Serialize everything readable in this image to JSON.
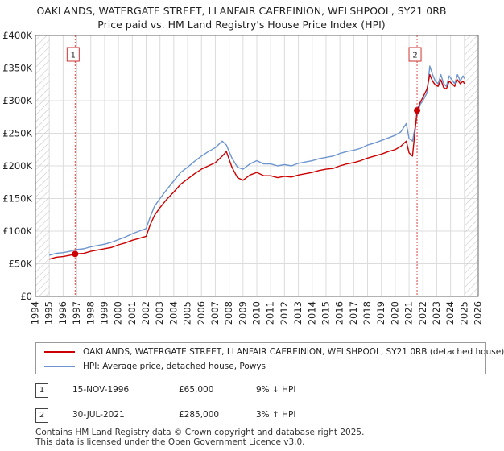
{
  "title_line1": "OAKLANDS, WATERGATE STREET, LLANFAIR CAEREINION, WELSHPOOL, SY21 0RB",
  "title_line2": "Price paid vs. HM Land Registry's House Price Index (HPI)",
  "colors": {
    "price": "#cc0000",
    "hpi": "#6d95cf",
    "grid": "#dcdcdc",
    "marker_line": "#dd4444",
    "future_hatch": "#c8c8c8"
  },
  "chart_data": {
    "type": "line",
    "x_range": [
      1994,
      2026
    ],
    "ylim": [
      0,
      400000
    ],
    "ytick_values": [
      0,
      50000,
      100000,
      150000,
      200000,
      250000,
      300000,
      350000,
      400000
    ],
    "ytick_labels": [
      "£0",
      "£50K",
      "£100K",
      "£150K",
      "£200K",
      "£250K",
      "£300K",
      "£350K",
      "£400K"
    ],
    "xtick_labels": [
      "1994",
      "1995",
      "1996",
      "1997",
      "1998",
      "1999",
      "2000",
      "2001",
      "2002",
      "2003",
      "2004",
      "2005",
      "2006",
      "2007",
      "2008",
      "2009",
      "2010",
      "2011",
      "2012",
      "2013",
      "2014",
      "2015",
      "2016",
      "2017",
      "2018",
      "2019",
      "2020",
      "2021",
      "2022",
      "2023",
      "2024",
      "2025",
      "2026"
    ],
    "data_start_year": 1995,
    "data_end_year": 2025.0,
    "series": [
      {
        "name": "OAKLANDS, WATERGATE STREET, LLANFAIR CAEREINION, WELSHPOOL, SY21 0RB (detached house)",
        "color": "#cc0000",
        "x": [
          1995.0,
          1995.5,
          1996.0,
          1996.5,
          1996.87,
          1997.5,
          1998.0,
          1998.5,
          1999.0,
          1999.5,
          2000.0,
          2000.5,
          2001.0,
          2001.5,
          2002.0,
          2002.3,
          2002.6,
          2003.0,
          2003.5,
          2004.0,
          2004.5,
          2005.0,
          2005.5,
          2006.0,
          2006.5,
          2007.0,
          2007.5,
          2007.8,
          2008.2,
          2008.6,
          2009.0,
          2009.5,
          2010.0,
          2010.5,
          2011.0,
          2011.5,
          2012.0,
          2012.5,
          2013.0,
          2013.5,
          2014.0,
          2014.5,
          2015.0,
          2015.5,
          2016.0,
          2016.5,
          2017.0,
          2017.5,
          2018.0,
          2018.5,
          2019.0,
          2019.5,
          2020.0,
          2020.4,
          2020.8,
          2021.0,
          2021.25,
          2021.58,
          2021.8,
          2022.0,
          2022.3,
          2022.5,
          2022.7,
          2022.9,
          2023.1,
          2023.3,
          2023.5,
          2023.7,
          2023.9,
          2024.1,
          2024.3,
          2024.5,
          2024.7,
          2024.9,
          2025.0
        ],
        "y": [
          57000,
          60000,
          61000,
          63000,
          65000,
          66000,
          69000,
          71000,
          73000,
          75000,
          79000,
          82000,
          86000,
          89000,
          92000,
          110000,
          124000,
          136000,
          149000,
          160000,
          172000,
          180000,
          188000,
          195000,
          200000,
          205000,
          215000,
          222000,
          198000,
          182000,
          178000,
          186000,
          190000,
          185000,
          185000,
          182000,
          184000,
          183000,
          186000,
          188000,
          190000,
          193000,
          195000,
          196000,
          200000,
          203000,
          205000,
          208000,
          212000,
          215000,
          218000,
          222000,
          225000,
          230000,
          238000,
          220000,
          215000,
          285000,
          297000,
          305000,
          318000,
          340000,
          330000,
          324000,
          322000,
          332000,
          320000,
          318000,
          330000,
          326000,
          322000,
          332000,
          326000,
          330000,
          326000
        ]
      },
      {
        "name": "HPI: Average price, detached house, Powys",
        "color": "#6d95cf",
        "x": [
          1995.0,
          1995.5,
          1996.0,
          1996.5,
          1996.87,
          1997.5,
          1998.0,
          1998.5,
          1999.0,
          1999.5,
          2000.0,
          2000.5,
          2001.0,
          2001.5,
          2002.0,
          2002.3,
          2002.6,
          2003.0,
          2003.5,
          2004.0,
          2004.5,
          2005.0,
          2005.5,
          2006.0,
          2006.5,
          2007.0,
          2007.5,
          2007.8,
          2008.2,
          2008.6,
          2009.0,
          2009.5,
          2010.0,
          2010.5,
          2011.0,
          2011.5,
          2012.0,
          2012.5,
          2013.0,
          2013.5,
          2014.0,
          2014.5,
          2015.0,
          2015.5,
          2016.0,
          2016.5,
          2017.0,
          2017.5,
          2018.0,
          2018.5,
          2019.0,
          2019.5,
          2020.0,
          2020.4,
          2020.8,
          2021.0,
          2021.25,
          2021.58,
          2021.8,
          2022.0,
          2022.3,
          2022.5,
          2022.7,
          2022.9,
          2023.1,
          2023.3,
          2023.5,
          2023.7,
          2023.9,
          2024.1,
          2024.3,
          2024.5,
          2024.7,
          2024.9,
          2025.0
        ],
        "y": [
          63000,
          66000,
          67000,
          69000,
          71500,
          73000,
          76000,
          78000,
          80000,
          83000,
          87000,
          91000,
          96000,
          100000,
          104000,
          122000,
          138000,
          150000,
          164000,
          177000,
          190000,
          198000,
          207000,
          215000,
          222000,
          228000,
          238000,
          232000,
          212000,
          198000,
          195000,
          203000,
          208000,
          203000,
          203000,
          200000,
          202000,
          200000,
          204000,
          206000,
          208000,
          211000,
          213000,
          215000,
          219000,
          222000,
          224000,
          227000,
          232000,
          235000,
          239000,
          243000,
          247000,
          252000,
          265000,
          242000,
          238000,
          276000,
          294000,
          300000,
          312000,
          353000,
          340000,
          330000,
          326000,
          340000,
          326000,
          322000,
          338000,
          332000,
          326000,
          340000,
          330000,
          338000,
          334000
        ]
      }
    ],
    "transactions": [
      {
        "id": "1",
        "x": 1996.87,
        "price": 65000,
        "date": "15-NOV-1996",
        "price_label": "£65,000",
        "hpi_label": "9% ↓ HPI"
      },
      {
        "id": "2",
        "x": 2021.58,
        "price": 285000,
        "date": "30-JUL-2021",
        "price_label": "£285,000",
        "hpi_label": "3% ↑ HPI"
      }
    ]
  },
  "legend": {
    "price_label": "OAKLANDS, WATERGATE STREET, LLANFAIR CAEREINION, WELSHPOOL, SY21 0RB (detached house)",
    "hpi_label": "HPI: Average price, detached house, Powys"
  },
  "footer_line1": "Contains HM Land Registry data © Crown copyright and database right 2025.",
  "footer_line2": "This data is licensed under the Open Government Licence v3.0."
}
